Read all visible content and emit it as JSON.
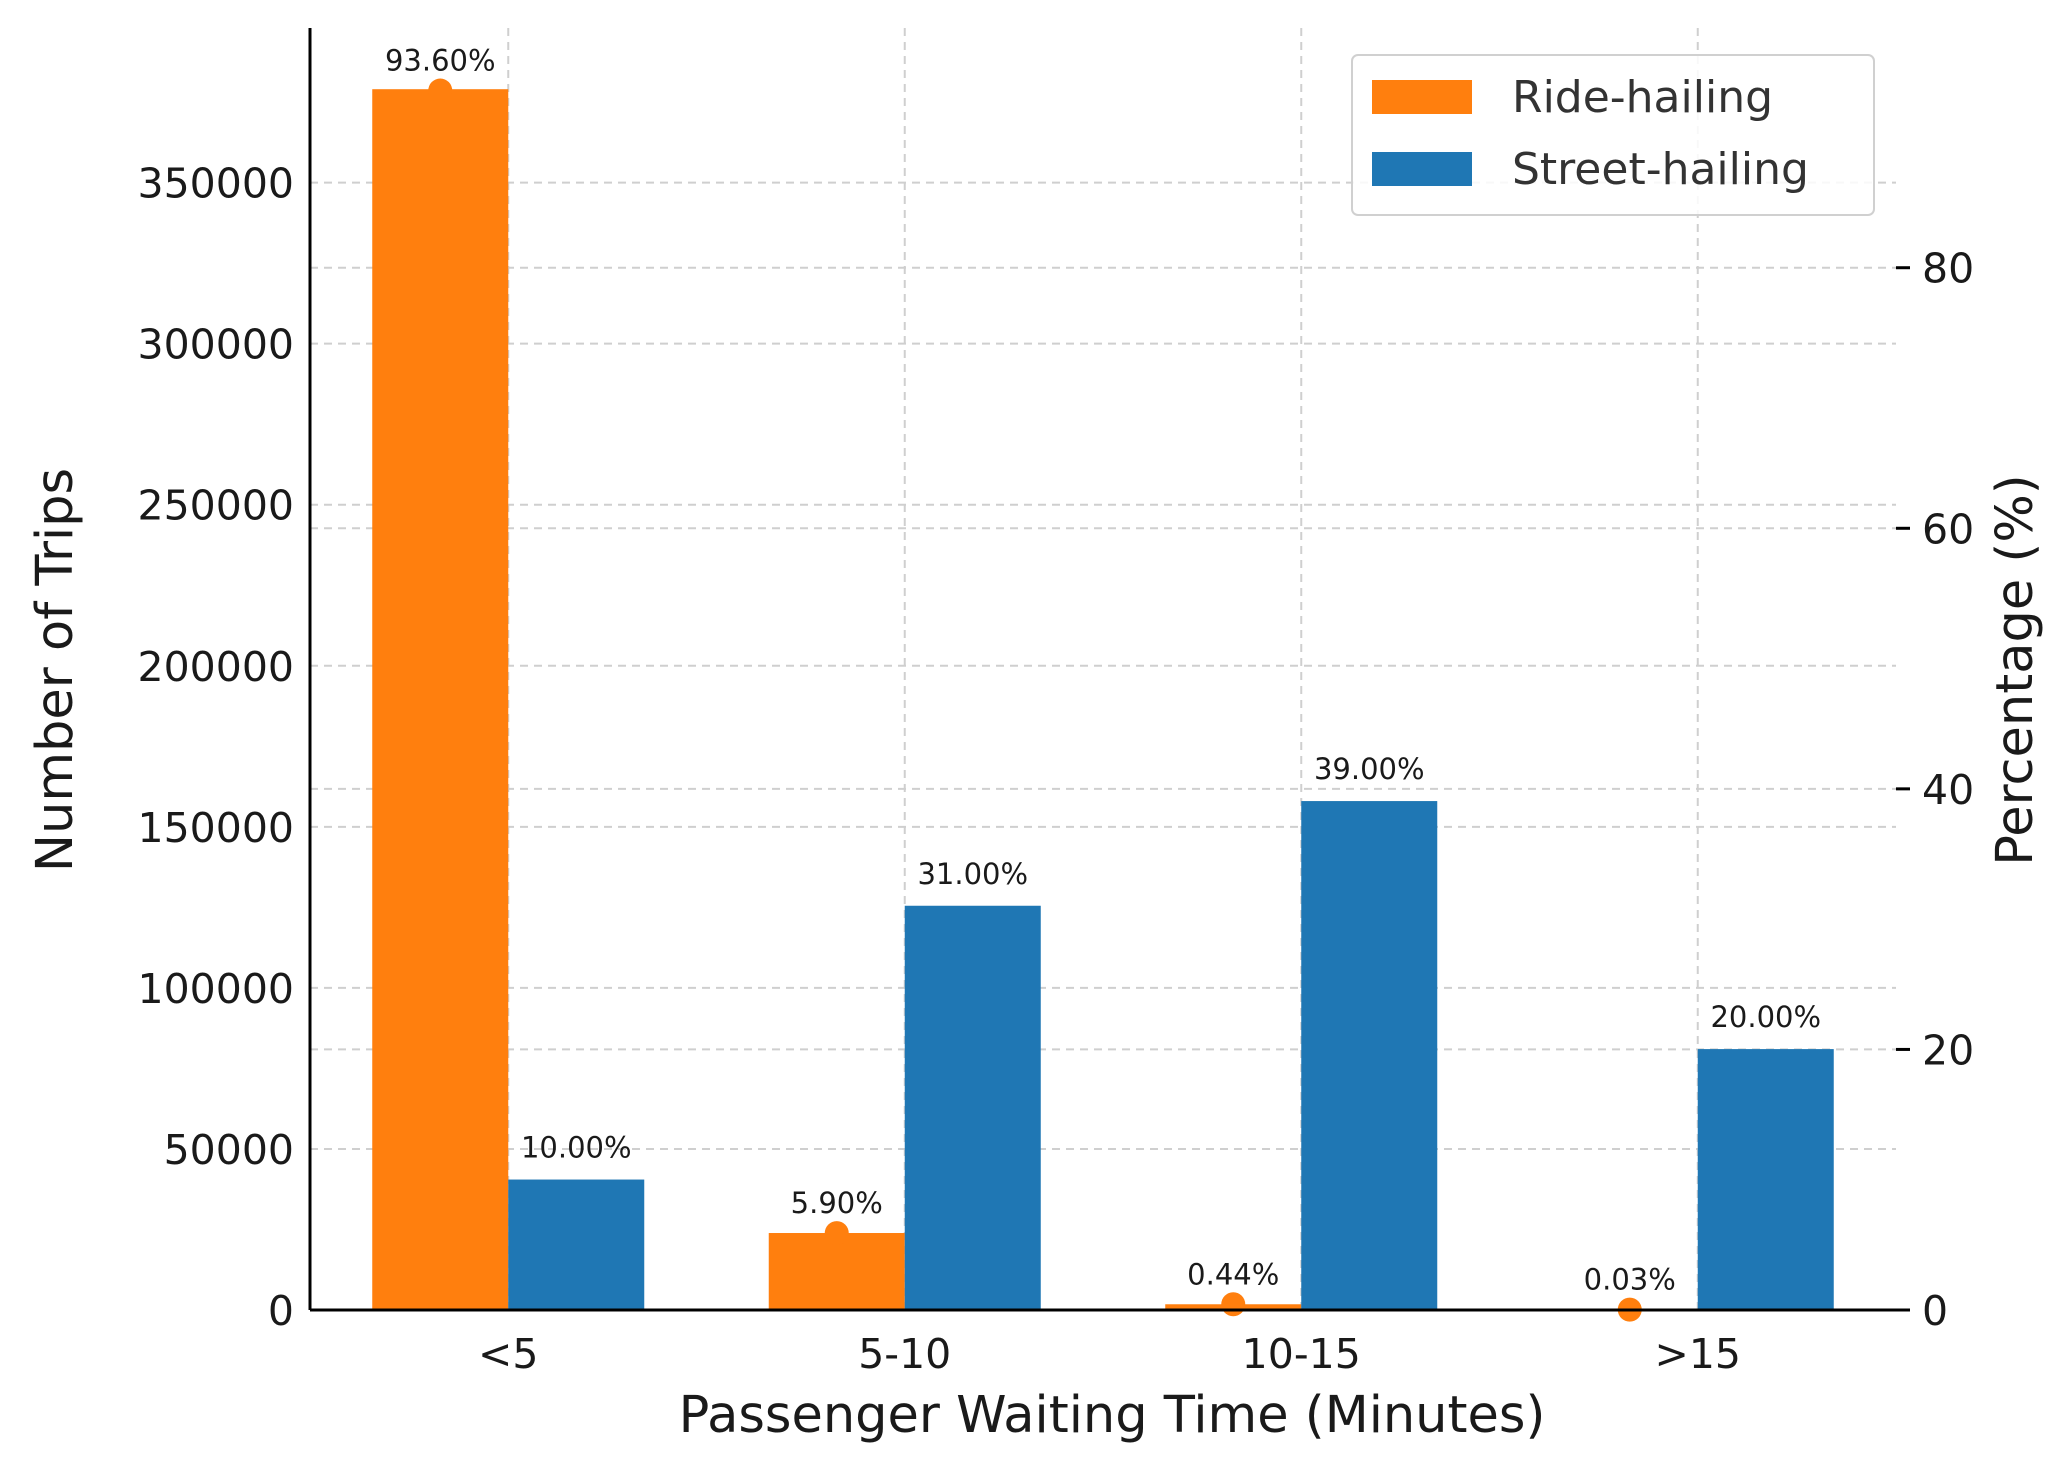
{
  "chart_data": {
    "type": "bar",
    "title": "",
    "xlabel": "Passenger Waiting Time (Minutes)",
    "ylabel": "Number of Trips",
    "y2label": "Percentage (%)",
    "categories": [
      "<5",
      "5-10",
      "10-15",
      ">15"
    ],
    "series": [
      {
        "name": "Ride-hailing",
        "color": "#ff7f0e",
        "values": [
          379000,
          23900,
          1780,
          120
        ],
        "percent": [
          93.6,
          5.9,
          0.44,
          0.03
        ],
        "percent_labels": [
          "93.60%",
          "5.90%",
          "0.44%",
          "0.03%"
        ]
      },
      {
        "name": "Street-hailing",
        "color": "#1f77b4",
        "values": [
          40500,
          125500,
          158000,
          81000
        ],
        "percent": [
          10.0,
          31.0,
          39.0,
          20.0
        ],
        "percent_labels": [
          "10.00%",
          "31.00%",
          "39.00%",
          "20.00%"
        ]
      }
    ],
    "ylim": [
      0,
      398000
    ],
    "y2lim": [
      0,
      98.4
    ],
    "yticks": [
      0,
      50000,
      100000,
      150000,
      200000,
      250000,
      300000,
      350000
    ],
    "y2ticks": [
      0,
      20,
      40,
      60,
      80
    ],
    "grid": true,
    "legend_position": "top-right"
  }
}
